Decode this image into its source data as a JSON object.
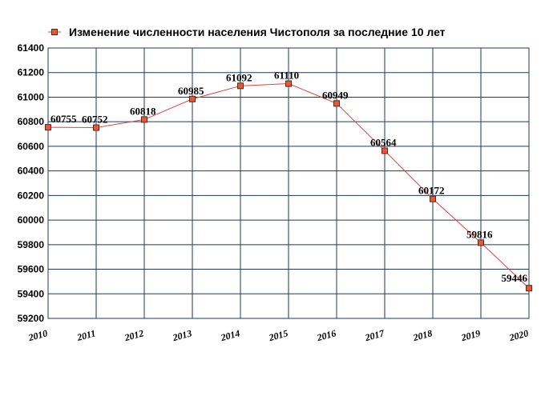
{
  "chart_data": {
    "type": "line",
    "title": "",
    "xlabel": "",
    "ylabel": "",
    "legend_position": "top-left",
    "grid": true,
    "categories": [
      "2010",
      "2011",
      "2012",
      "2013",
      "2014",
      "2015",
      "2016",
      "2017",
      "2018",
      "2019",
      "2020"
    ],
    "ylim": [
      59200,
      61400
    ],
    "yticks": [
      59200,
      59400,
      59600,
      59800,
      60000,
      60200,
      60400,
      60600,
      60800,
      61000,
      61200,
      61400
    ],
    "series": [
      {
        "name": "Изменение численности населения Чистополя за последние 10 лет",
        "values": [
          60755,
          60752,
          60818,
          60985,
          61092,
          61110,
          60949,
          60564,
          60172,
          59816,
          59446
        ]
      }
    ],
    "colors": {
      "line": "#e8403a",
      "marker_fill": "#e8573a",
      "marker_stroke": "#5a2a10",
      "grid": "#1f3a5f",
      "frame": "#1f3a5f"
    }
  }
}
